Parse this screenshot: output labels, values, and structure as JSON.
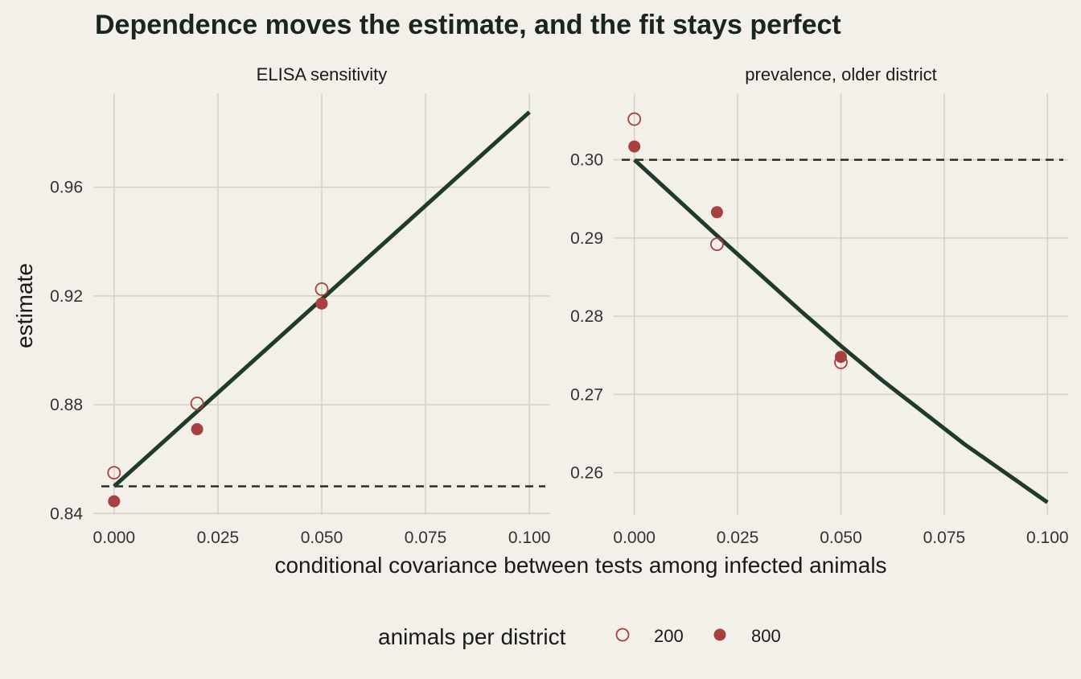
{
  "chart_data": {
    "type": "scatter",
    "title": "Dependence moves the estimate, and the fit stays perfect",
    "xlabel": "conditional covariance between tests among infected animals",
    "ylabel": "estimate",
    "legend": {
      "title": "animals per district",
      "position": "bottom",
      "entries": [
        {
          "label": "200",
          "style": "open"
        },
        {
          "label": "800",
          "style": "filled"
        }
      ]
    },
    "colors": {
      "background": "#f2f0e9",
      "grid": "#d4d2c4",
      "line": "#1e3b2c",
      "points": "#a84040",
      "reference": "#2a2a2a"
    },
    "panels": [
      {
        "strip": "ELISA sensitivity",
        "xlim": [
          -0.005,
          0.105
        ],
        "ylim": [
          0.8395,
          0.9945
        ],
        "x_ticks": [
          0.0,
          0.025,
          0.05,
          0.075,
          0.1
        ],
        "x_tick_labels": [
          "0.000",
          "0.025",
          "0.050",
          "0.075",
          "0.100"
        ],
        "y_ticks": [
          0.84,
          0.88,
          0.92,
          0.96
        ],
        "y_tick_labels": [
          "0.84",
          "0.88",
          "0.92",
          "0.96"
        ],
        "reference_y": 0.85,
        "curve": {
          "x": [
            0.0,
            0.1
          ],
          "y": [
            0.85,
            0.9876
          ]
        },
        "series": [
          {
            "name": "200",
            "style": "open",
            "x": [
              0.0,
              0.02,
              0.05
            ],
            "y": [
              0.855,
              0.8805,
              0.9225
            ]
          },
          {
            "name": "800",
            "style": "filled",
            "x": [
              0.0,
              0.02,
              0.05
            ],
            "y": [
              0.8445,
              0.871,
              0.9172
            ]
          }
        ]
      },
      {
        "strip": "prevalence, older district",
        "xlim": [
          -0.005,
          0.105
        ],
        "ylim": [
          0.2546,
          0.3085
        ],
        "x_ticks": [
          0.0,
          0.025,
          0.05,
          0.075,
          0.1
        ],
        "x_tick_labels": [
          "0.000",
          "0.025",
          "0.050",
          "0.075",
          "0.100"
        ],
        "y_ticks": [
          0.26,
          0.27,
          0.28,
          0.29,
          0.3
        ],
        "y_tick_labels": [
          "0.26",
          "0.27",
          "0.28",
          "0.29",
          "0.30"
        ],
        "reference_y": 0.3,
        "curve": {
          "x": [
            0.0,
            0.02,
            0.04,
            0.05,
            0.06,
            0.08,
            0.1
          ],
          "y": [
            0.3,
            0.2903,
            0.2808,
            0.2762,
            0.2718,
            0.2636,
            0.2562
          ]
        },
        "series": [
          {
            "name": "200",
            "style": "open",
            "x": [
              0.0,
              0.02,
              0.05
            ],
            "y": [
              0.3052,
              0.2892,
              0.2741
            ]
          },
          {
            "name": "800",
            "style": "filled",
            "x": [
              0.0,
              0.02,
              0.05
            ],
            "y": [
              0.3017,
              0.2933,
              0.2748
            ]
          }
        ]
      }
    ]
  }
}
